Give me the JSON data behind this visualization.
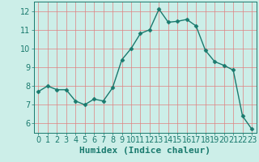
{
  "x": [
    0,
    1,
    2,
    3,
    4,
    5,
    6,
    7,
    8,
    9,
    10,
    11,
    12,
    13,
    14,
    15,
    16,
    17,
    18,
    19,
    20,
    21,
    22,
    23
  ],
  "y": [
    7.7,
    8.0,
    7.8,
    7.8,
    7.2,
    7.0,
    7.3,
    7.2,
    7.9,
    9.4,
    10.0,
    10.8,
    11.0,
    12.1,
    11.4,
    11.45,
    11.55,
    11.2,
    9.9,
    9.3,
    9.1,
    8.85,
    6.4,
    5.7
  ],
  "line_color": "#1a7a6e",
  "marker": "D",
  "marker_size": 2.5,
  "bg_color": "#cceee8",
  "grid_color": "#e08080",
  "xlabel": "Humidex (Indice chaleur)",
  "ylim": [
    5.5,
    12.5
  ],
  "xlim": [
    -0.5,
    23.5
  ],
  "yticks": [
    6,
    7,
    8,
    9,
    10,
    11,
    12
  ],
  "xticks": [
    0,
    1,
    2,
    3,
    4,
    5,
    6,
    7,
    8,
    9,
    10,
    11,
    12,
    13,
    14,
    15,
    16,
    17,
    18,
    19,
    20,
    21,
    22,
    23
  ],
  "tick_label_color": "#1a7a6e",
  "xlabel_fontsize": 8,
  "tick_fontsize": 7,
  "linewidth": 1.0
}
